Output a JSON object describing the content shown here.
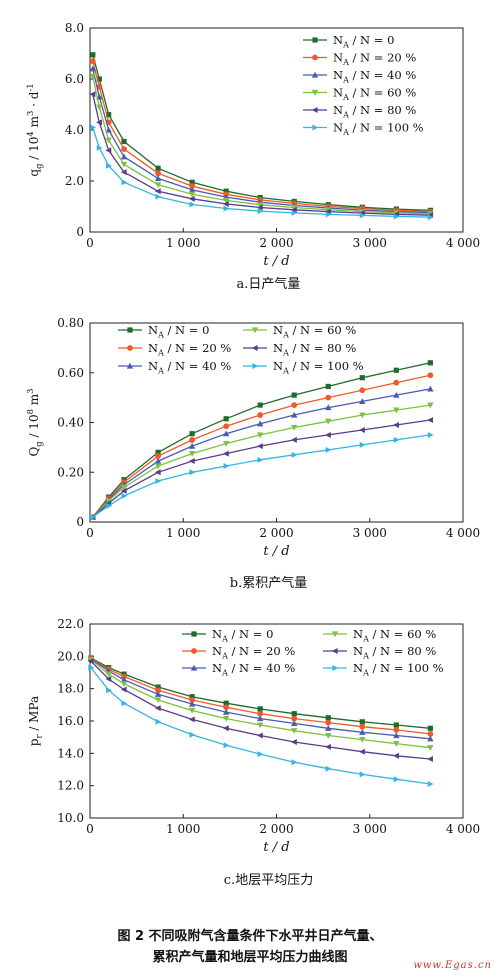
{
  "colors": [
    "#1f6b2a",
    "#f05a28",
    "#4a5bb0",
    "#7cc242",
    "#5b3b8c",
    "#33b5e5"
  ],
  "chart_data": [
    {
      "type": "line",
      "caption": "a.日产气量",
      "xlabel": "t / d",
      "ylabel": "q_g / 10^4 m^3 · d^-1",
      "xlim": [
        0,
        4000
      ],
      "ylim": [
        0,
        8.0
      ],
      "xticks": [
        "0",
        "1 000",
        "2 000",
        "3 000",
        "4 000"
      ],
      "yticks": [
        "0",
        "2.0",
        "4.0",
        "6.0",
        "8.0"
      ],
      "legend_loc": "top-right",
      "x": [
        30,
        100,
        200,
        365,
        730,
        1095,
        1460,
        1825,
        2190,
        2555,
        2920,
        3285,
        3650
      ],
      "series": [
        {
          "name": "N_A / N = 0",
          "values": [
            6.95,
            6.0,
            4.6,
            3.55,
            2.5,
            1.95,
            1.6,
            1.35,
            1.2,
            1.07,
            0.97,
            0.9,
            0.85
          ]
        },
        {
          "name": "N_A / N = 20 %",
          "values": [
            6.7,
            5.7,
            4.3,
            3.25,
            2.3,
            1.8,
            1.48,
            1.26,
            1.12,
            1.0,
            0.92,
            0.85,
            0.8
          ]
        },
        {
          "name": "N_A / N = 40 %",
          "values": [
            6.4,
            5.3,
            4.0,
            2.95,
            2.1,
            1.65,
            1.37,
            1.17,
            1.04,
            0.94,
            0.86,
            0.8,
            0.76
          ]
        },
        {
          "name": "N_A / N = 60 %",
          "values": [
            6.1,
            4.9,
            3.6,
            2.65,
            1.85,
            1.48,
            1.24,
            1.07,
            0.96,
            0.87,
            0.8,
            0.75,
            0.71
          ]
        },
        {
          "name": "N_A / N = 80 %",
          "values": [
            5.4,
            4.3,
            3.2,
            2.35,
            1.6,
            1.3,
            1.1,
            0.96,
            0.87,
            0.8,
            0.74,
            0.69,
            0.66
          ]
        },
        {
          "name": "N_A / N = 100 %",
          "values": [
            4.1,
            3.3,
            2.6,
            1.95,
            1.38,
            1.08,
            0.92,
            0.82,
            0.75,
            0.69,
            0.65,
            0.61,
            0.58
          ]
        }
      ]
    },
    {
      "type": "line",
      "caption": "b.累积产气量",
      "xlabel": "t / d",
      "ylabel": "Q_g / 10^8 m^3",
      "xlim": [
        0,
        4000
      ],
      "ylim": [
        0,
        0.8
      ],
      "xticks": [
        "0",
        "1 000",
        "2 000",
        "3 000",
        "4 000"
      ],
      "yticks": [
        "0",
        "0.20",
        "0.40",
        "0.60",
        "0.80"
      ],
      "legend_loc": "top-left",
      "x": [
        30,
        200,
        365,
        730,
        1095,
        1460,
        1825,
        2190,
        2555,
        2920,
        3285,
        3650
      ],
      "series": [
        {
          "name": "N_A / N = 0",
          "values": [
            0.02,
            0.1,
            0.17,
            0.28,
            0.355,
            0.415,
            0.47,
            0.51,
            0.545,
            0.58,
            0.61,
            0.64
          ]
        },
        {
          "name": "N_A / N = 20 %",
          "values": [
            0.02,
            0.095,
            0.16,
            0.265,
            0.33,
            0.385,
            0.43,
            0.47,
            0.5,
            0.53,
            0.56,
            0.59
          ]
        },
        {
          "name": "N_A / N = 40 %",
          "values": [
            0.02,
            0.09,
            0.15,
            0.245,
            0.305,
            0.355,
            0.395,
            0.43,
            0.46,
            0.485,
            0.51,
            0.535
          ]
        },
        {
          "name": "N_A / N = 60 %",
          "values": [
            0.02,
            0.085,
            0.14,
            0.225,
            0.275,
            0.315,
            0.35,
            0.38,
            0.405,
            0.43,
            0.45,
            0.47
          ]
        },
        {
          "name": "N_A / N = 80 %",
          "values": [
            0.02,
            0.075,
            0.125,
            0.2,
            0.245,
            0.275,
            0.305,
            0.33,
            0.35,
            0.37,
            0.39,
            0.41
          ]
        },
        {
          "name": "N_A / N = 100 %",
          "values": [
            0.02,
            0.065,
            0.105,
            0.165,
            0.2,
            0.225,
            0.25,
            0.27,
            0.29,
            0.31,
            0.33,
            0.35
          ]
        }
      ],
      "legend_order": [
        0,
        3,
        1,
        4,
        2,
        5
      ]
    },
    {
      "type": "line",
      "caption": "c.地层平均压力",
      "xlabel": "t / d",
      "ylabel": "p_r / MPa",
      "xlim": [
        0,
        4000
      ],
      "ylim": [
        10.0,
        22.0
      ],
      "xticks": [
        "0",
        "1 000",
        "2 000",
        "3 000",
        "4 000"
      ],
      "yticks": [
        "10.0",
        "12.0",
        "14.0",
        "16.0",
        "18.0",
        "20.0",
        "22.0"
      ],
      "legend_loc": "top-right",
      "x": [
        10,
        200,
        365,
        730,
        1095,
        1460,
        1825,
        2190,
        2555,
        2920,
        3285,
        3650
      ],
      "series": [
        {
          "name": "N_A / N = 0",
          "values": [
            19.9,
            19.3,
            18.9,
            18.1,
            17.5,
            17.1,
            16.75,
            16.45,
            16.2,
            15.95,
            15.75,
            15.55
          ]
        },
        {
          "name": "N_A / N = 20 %",
          "values": [
            19.9,
            19.2,
            18.75,
            17.9,
            17.3,
            16.85,
            16.45,
            16.15,
            15.9,
            15.65,
            15.45,
            15.2
          ]
        },
        {
          "name": "N_A / N = 40 %",
          "values": [
            19.85,
            19.1,
            18.55,
            17.65,
            17.05,
            16.55,
            16.15,
            15.85,
            15.55,
            15.3,
            15.1,
            14.9
          ]
        },
        {
          "name": "N_A / N = 60 %",
          "values": [
            19.8,
            18.9,
            18.3,
            17.3,
            16.65,
            16.15,
            15.75,
            15.4,
            15.1,
            14.85,
            14.6,
            14.35
          ]
        },
        {
          "name": "N_A / N = 80 %",
          "values": [
            19.7,
            18.6,
            17.95,
            16.8,
            16.1,
            15.55,
            15.1,
            14.7,
            14.4,
            14.1,
            13.85,
            13.65
          ]
        },
        {
          "name": "N_A / N = 100 %",
          "values": [
            19.3,
            17.9,
            17.1,
            15.95,
            15.15,
            14.5,
            13.95,
            13.45,
            13.05,
            12.7,
            12.4,
            12.1
          ]
        }
      ],
      "legend_order": [
        0,
        3,
        1,
        4,
        2,
        5
      ]
    }
  ],
  "figure_caption": {
    "line1": "图 2   不同吸附气含量条件下水平井日产气量、",
    "line2": "累积产气量和地层平均压力曲线图"
  },
  "watermark": "www.Egas.cn"
}
